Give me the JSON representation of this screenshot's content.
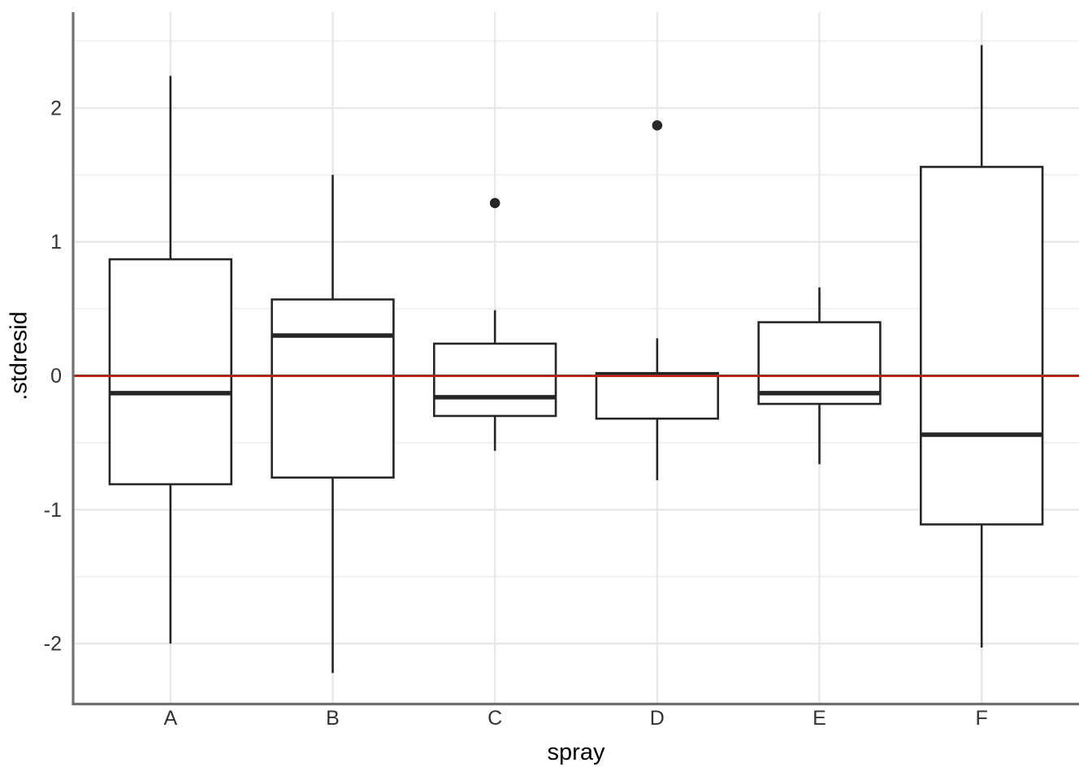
{
  "chart_data": {
    "type": "boxplot",
    "title": "",
    "xlabel": "spray",
    "ylabel": ".stdresid",
    "categories": [
      "A",
      "B",
      "C",
      "D",
      "E",
      "F"
    ],
    "y_ticks": [
      2,
      1,
      0,
      -1,
      -2
    ],
    "y_tick_labels": [
      "2",
      "1",
      "0",
      "-1",
      "-2"
    ],
    "y_minor_gridlines": [
      2.5,
      1.5,
      0.5,
      -0.5,
      -1.5
    ],
    "ylim": [
      -2.45,
      2.71
    ],
    "grid": true,
    "legend": false,
    "reference_line": {
      "y": 0,
      "color": "#FF0000"
    },
    "boxes": [
      {
        "category": "A",
        "whisker_low": -2.0,
        "q1": -0.81,
        "median": -0.13,
        "q3": 0.87,
        "whisker_high": 2.24,
        "outliers": []
      },
      {
        "category": "B",
        "whisker_low": -2.22,
        "q1": -0.76,
        "median": 0.3,
        "q3": 0.57,
        "whisker_high": 1.5,
        "outliers": []
      },
      {
        "category": "C",
        "whisker_low": -0.56,
        "q1": -0.3,
        "median": -0.16,
        "q3": 0.24,
        "whisker_high": 0.49,
        "outliers": [
          1.29
        ]
      },
      {
        "category": "D",
        "whisker_low": -0.78,
        "q1": -0.32,
        "median": 0.01,
        "q3": 0.02,
        "whisker_high": 0.28,
        "outliers": [
          1.87
        ]
      },
      {
        "category": "E",
        "whisker_low": -0.66,
        "q1": -0.21,
        "median": -0.13,
        "q3": 0.4,
        "whisker_high": 0.66,
        "outliers": []
      },
      {
        "category": "F",
        "whisker_low": -2.03,
        "q1": -1.11,
        "median": -0.44,
        "q3": 1.56,
        "whisker_high": 2.47,
        "outliers": []
      }
    ],
    "colors": {
      "box_stroke": "#262626",
      "box_fill": "#FFFFFF",
      "median": "#262626",
      "outlier": "#262626",
      "axis_line": "#707070",
      "grid_major": "#E8E8E8",
      "grid_minor": "#EFEFEF",
      "tick_text": "#333333",
      "title_text": "#000000",
      "reference": "#FF0000",
      "background": "#FFFFFF"
    }
  }
}
